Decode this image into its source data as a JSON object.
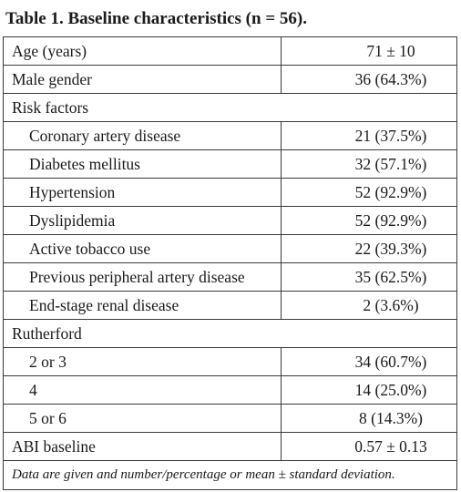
{
  "caption": "Table 1. Baseline characteristics (n = 56).",
  "rows": [
    {
      "label": "Age (years)",
      "value": "71 ± 10"
    },
    {
      "label": "Male gender",
      "value": "36 (64.3%)"
    },
    {
      "label": "Risk factors",
      "value": ""
    },
    {
      "label": "Coronary artery disease",
      "value": "21 (37.5%)"
    },
    {
      "label": "Diabetes mellitus",
      "value": "32 (57.1%)"
    },
    {
      "label": "Hypertension",
      "value": "52 (92.9%)"
    },
    {
      "label": "Dyslipidemia",
      "value": "52 (92.9%)"
    },
    {
      "label": "Active tobacco use",
      "value": "22 (39.3%)"
    },
    {
      "label": "Previous peripheral artery disease",
      "value": "35 (62.5%)"
    },
    {
      "label": "End-stage renal disease",
      "value": "2 (3.6%)"
    },
    {
      "label": "Rutherford",
      "value": ""
    },
    {
      "label": "2 or 3",
      "value": "34 (60.7%)"
    },
    {
      "label": "4",
      "value": "14 (25.0%)"
    },
    {
      "label": "5 or 6",
      "value": "8 (14.3%)"
    },
    {
      "label": "ABI baseline",
      "value": "0.57 ± 0.13"
    }
  ],
  "footnote": "Data are given and number/percentage or mean ± standard deviation."
}
